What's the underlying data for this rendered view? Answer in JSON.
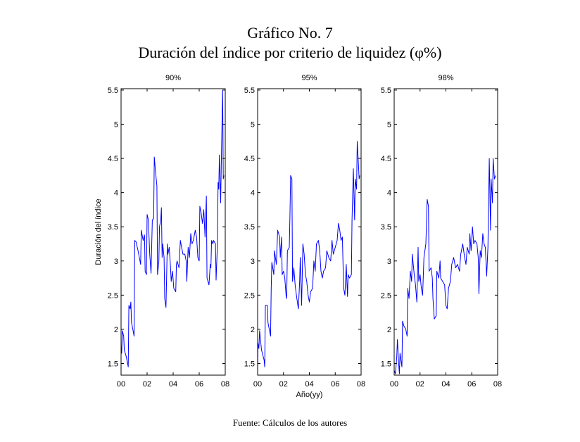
{
  "title": "Gráfico No. 7",
  "subtitle": "Duración del índice por criterio de liquidez (φ%)",
  "source": "Fuente: Cálculos de los autores",
  "line_color": "#0000ff",
  "chart_data": [
    {
      "type": "line",
      "title": "90%",
      "xlabel": "",
      "ylabel": "Duración del índice",
      "xlim": [
        0,
        8
      ],
      "ylim": [
        1.33,
        5.52
      ],
      "xticks": [
        0,
        2,
        4,
        6,
        8
      ],
      "xtick_labels": [
        "00",
        "02",
        "04",
        "06",
        "08"
      ],
      "yticks": [
        1.5,
        2,
        2.5,
        3,
        3.5,
        4,
        4.5,
        5,
        5.5
      ],
      "ytick_labels": [
        "1.5",
        "2",
        "2.5",
        "3",
        "3.5",
        "4",
        "4.5",
        "5",
        "5.5"
      ],
      "x": [
        0,
        0.05,
        0.1,
        0.2,
        0.25,
        0.4,
        0.55,
        0.6,
        0.7,
        0.75,
        0.8,
        0.9,
        1.0,
        1.05,
        1.15,
        1.3,
        1.5,
        1.55,
        1.7,
        1.8,
        1.85,
        1.95,
        2.0,
        2.1,
        2.2,
        2.3,
        2.4,
        2.5,
        2.55,
        2.65,
        2.75,
        2.8,
        2.9,
        2.95,
        3.05,
        3.1,
        3.15,
        3.2,
        3.3,
        3.35,
        3.45,
        3.55,
        3.6,
        3.7,
        3.8,
        3.85,
        3.95,
        4.05,
        4.2,
        4.25,
        4.3,
        4.45,
        4.55,
        4.65,
        4.75,
        4.9,
        5.0,
        5.05,
        5.15,
        5.25,
        5.35,
        5.45,
        5.55,
        5.7,
        5.8,
        5.9,
        6.0,
        6.05,
        6.15,
        6.25,
        6.35,
        6.45,
        6.55,
        6.6,
        6.75,
        6.85,
        6.9,
        6.95,
        7.05,
        7.1,
        7.25,
        7.3,
        7.4,
        7.45,
        7.5,
        7.55,
        7.65,
        7.7,
        7.75,
        7.8,
        7.85,
        7.9
      ],
      "y": [
        1.75,
        1.65,
        1.98,
        1.9,
        1.7,
        1.6,
        1.45,
        2.35,
        2.3,
        2.4,
        2.1,
        2.0,
        1.9,
        3.3,
        3.28,
        3.15,
        2.95,
        3.45,
        3.3,
        3.38,
        2.85,
        2.8,
        3.68,
        3.6,
        3.1,
        2.82,
        3.6,
        3.62,
        4.52,
        4.3,
        4.1,
        2.8,
        3.0,
        3.5,
        3.6,
        3.78,
        3.05,
        3.25,
        3.05,
        2.45,
        2.32,
        3.25,
        3.1,
        3.2,
        2.9,
        2.7,
        2.85,
        2.6,
        2.55,
        2.95,
        3.0,
        2.9,
        3.3,
        3.2,
        3.1,
        3.1,
        3.0,
        2.7,
        3.2,
        3.05,
        3.4,
        3.25,
        3.3,
        3.45,
        3.35,
        3.05,
        3.0,
        3.8,
        3.7,
        3.55,
        3.75,
        3.35,
        3.95,
        2.75,
        2.65,
        2.95,
        2.9,
        3.3,
        3.25,
        3.3,
        3.25,
        2.72,
        3.25,
        4.15,
        4.05,
        4.55,
        3.85,
        4.5,
        5.0,
        5.5,
        4.2,
        4.25
      ]
    },
    {
      "type": "line",
      "title": "95%",
      "xlabel": "Año(yy)",
      "ylabel": "",
      "xlim": [
        0,
        8
      ],
      "ylim": [
        1.33,
        5.52
      ],
      "xticks": [
        0,
        2,
        4,
        6,
        8
      ],
      "xtick_labels": [
        "00",
        "02",
        "04",
        "06",
        "08"
      ],
      "yticks": [
        1.5,
        2,
        2.5,
        3,
        3.5,
        4,
        4.5,
        5,
        5.5
      ],
      "ytick_labels": [
        "1.5",
        "2",
        "2.5",
        "3",
        "3.5",
        "4",
        "4.5",
        "5",
        "5.5"
      ],
      "x": [
        0,
        0.02,
        0.1,
        0.15,
        0.3,
        0.5,
        0.55,
        0.6,
        0.75,
        0.8,
        1.0,
        1.05,
        1.1,
        1.25,
        1.3,
        1.45,
        1.55,
        1.7,
        1.75,
        1.85,
        1.9,
        2.0,
        2.1,
        2.2,
        2.25,
        2.3,
        2.45,
        2.5,
        2.55,
        2.65,
        2.7,
        2.8,
        2.9,
        3.0,
        3.15,
        3.25,
        3.3,
        3.4,
        3.5,
        3.6,
        3.7,
        3.8,
        3.9,
        4.0,
        4.1,
        4.25,
        4.35,
        4.45,
        4.55,
        4.7,
        4.8,
        4.9,
        5.0,
        5.1,
        5.25,
        5.35,
        5.5,
        5.65,
        5.75,
        5.85,
        6.0,
        6.15,
        6.25,
        6.35,
        6.45,
        6.55,
        6.65,
        6.75,
        6.85,
        6.95,
        7.0,
        7.1,
        7.25,
        7.3,
        7.4,
        7.5,
        7.55,
        7.65,
        7.7,
        7.8,
        7.85,
        7.9
      ],
      "y": [
        1.35,
        1.8,
        1.72,
        1.98,
        1.7,
        1.55,
        1.45,
        2.35,
        2.35,
        2.1,
        1.9,
        2.6,
        2.98,
        2.8,
        3.15,
        2.95,
        3.45,
        3.35,
        3.05,
        3.35,
        2.8,
        2.85,
        2.75,
        2.5,
        2.45,
        3.15,
        3.2,
        3.65,
        4.25,
        4.2,
        2.7,
        2.9,
        2.65,
        2.5,
        2.3,
        2.7,
        3.05,
        2.35,
        3.25,
        3.1,
        2.8,
        2.7,
        2.5,
        2.4,
        2.55,
        2.6,
        3.0,
        2.85,
        3.25,
        3.3,
        3.15,
        2.85,
        2.75,
        2.85,
        2.9,
        3.15,
        3.05,
        3.0,
        3.3,
        3.1,
        3.2,
        3.3,
        3.55,
        3.45,
        3.3,
        3.35,
        2.6,
        2.5,
        2.95,
        2.48,
        2.8,
        2.75,
        2.8,
        3.6,
        4.35,
        3.6,
        4.2,
        4.05,
        4.75,
        4.4,
        4.2,
        4.25
      ]
    },
    {
      "type": "line",
      "title": "98%",
      "xlabel": "",
      "ylabel": "",
      "xlim": [
        0,
        8
      ],
      "ylim": [
        1.33,
        5.52
      ],
      "xticks": [
        0,
        2,
        4,
        6,
        8
      ],
      "xtick_labels": [
        "00",
        "02",
        "04",
        "06",
        "08"
      ],
      "yticks": [
        1.5,
        2,
        2.5,
        3,
        3.5,
        4,
        4.5,
        5,
        5.5
      ],
      "ytick_labels": [
        "1.5",
        "2",
        "2.5",
        "3",
        "3.5",
        "4",
        "4.5",
        "5",
        "5.5"
      ],
      "x": [
        0,
        0.1,
        0.2,
        0.25,
        0.35,
        0.4,
        0.45,
        0.6,
        0.65,
        0.75,
        0.9,
        1.0,
        1.05,
        1.15,
        1.25,
        1.35,
        1.4,
        1.55,
        1.65,
        1.75,
        1.85,
        1.9,
        2.0,
        2.1,
        2.2,
        2.3,
        2.45,
        2.55,
        2.65,
        2.7,
        2.85,
        2.95,
        3.0,
        3.1,
        3.25,
        3.3,
        3.45,
        3.55,
        3.6,
        3.75,
        3.9,
        4.0,
        4.1,
        4.2,
        4.35,
        4.45,
        4.6,
        4.75,
        4.9,
        5.05,
        5.15,
        5.3,
        5.45,
        5.55,
        5.65,
        5.8,
        5.85,
        5.95,
        6.05,
        6.15,
        6.25,
        6.4,
        6.5,
        6.55,
        6.65,
        6.75,
        6.85,
        6.95,
        7.05,
        7.15,
        7.25,
        7.35,
        7.45,
        7.5,
        7.6,
        7.65,
        7.75,
        7.85
      ],
      "y": [
        1.4,
        1.35,
        1.6,
        1.85,
        1.5,
        1.35,
        1.65,
        1.45,
        2.12,
        2.05,
        2.0,
        1.9,
        2.6,
        2.45,
        2.85,
        2.7,
        3.1,
        2.8,
        2.65,
        2.4,
        3.2,
        2.7,
        2.8,
        2.6,
        2.5,
        3.05,
        3.25,
        3.9,
        3.8,
        2.85,
        2.9,
        2.75,
        2.45,
        2.15,
        2.2,
        2.85,
        2.75,
        3.0,
        2.75,
        2.7,
        2.65,
        2.35,
        2.3,
        2.6,
        2.7,
        2.95,
        3.05,
        2.9,
        2.95,
        2.85,
        3.1,
        3.25,
        3.05,
        2.95,
        3.2,
        3.1,
        3.4,
        3.15,
        3.5,
        3.25,
        3.3,
        3.25,
        3.05,
        2.52,
        3.15,
        3.05,
        3.4,
        3.25,
        3.2,
        2.78,
        3.2,
        4.5,
        3.45,
        4.2,
        3.85,
        4.5,
        4.2,
        4.25
      ]
    }
  ]
}
